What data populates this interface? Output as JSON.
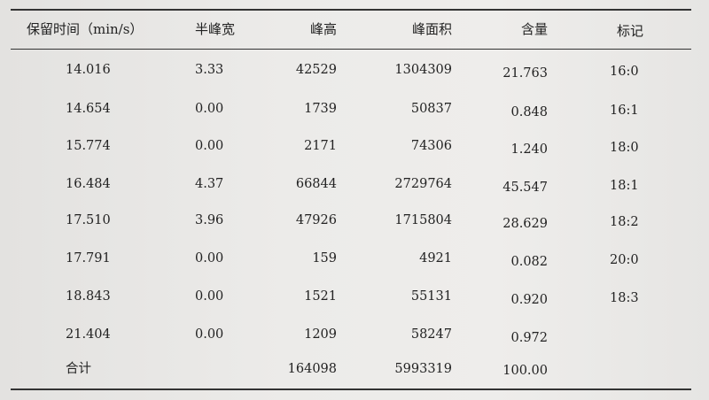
{
  "headers": [
    "保留时间（min/s）",
    "半峰宽",
    "峰高",
    "峰面积",
    "含量",
    "标记"
  ],
  "rows": [
    [
      "14.016",
      "3.33",
      "42529",
      "1304309",
      "21.763",
      "16:0"
    ],
    [
      "14.654",
      "0.00",
      "1739",
      "50837",
      "0.848",
      "16:1"
    ],
    [
      "15.774",
      "0.00",
      "2171",
      "74306",
      "1.240",
      "18:0"
    ],
    [
      "16.484",
      "4.37",
      "66844",
      "2729764",
      "45.547",
      "18:1"
    ],
    [
      "17.510",
      "3.96",
      "47926",
      "1715804",
      "28.629",
      "18:2"
    ],
    [
      "17.791",
      "0.00",
      "159",
      "4921",
      "0.082",
      "20:0"
    ],
    [
      "18.843",
      "0.00",
      "1521",
      "55131",
      "0.920",
      "18:3"
    ],
    [
      "21.404",
      "0.00",
      "1209",
      "58247",
      "0.972",
      ""
    ]
  ],
  "total": {
    "label": "合计",
    "peak_height": "164098",
    "peak_area": "5993319",
    "content": "100.00"
  }
}
